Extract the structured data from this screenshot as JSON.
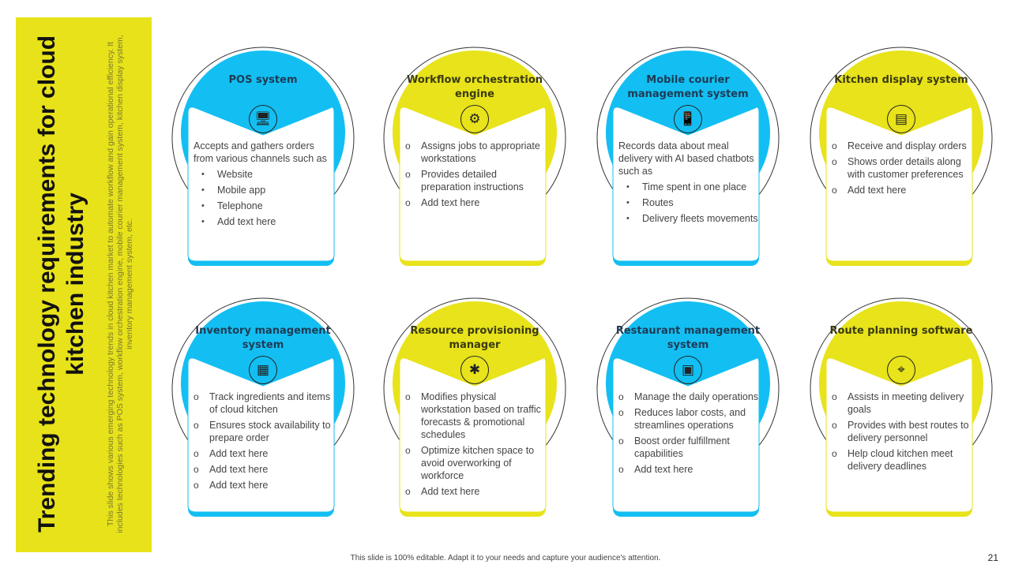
{
  "sidebar": {
    "title": "Trending technology requirements for cloud kitchen industry",
    "description": "This slide shows various emerging technology trends in cloud kitchen market to automate workflow and gain operational efficiency. It includes technologies such as POS system, workflow orchestration engine, mobile courier management system, kitchen display system, inventory management system, etc."
  },
  "colors": {
    "blue": "#13bff2",
    "yellow": "#e8e31a",
    "sidebar": "#e8e21a"
  },
  "cards": [
    {
      "title": "POS system",
      "color": "blue",
      "icon": "pos-terminal-icon",
      "intro": "Accepts and gathers orders from various channels such as",
      "bullet": "dot",
      "items": [
        "Website",
        "Mobile app",
        "Telephone",
        "Add text here"
      ]
    },
    {
      "title": "Workflow orchestration engine",
      "color": "yellow",
      "icon": "workflow-gear-icon",
      "intro": "",
      "bullet": "circ",
      "items": [
        "Assigns jobs to appropriate workstations",
        "Provides detailed preparation instructions",
        "Add text here"
      ]
    },
    {
      "title": "Mobile courier management system",
      "color": "blue",
      "icon": "mobile-delivery-icon",
      "intro": "Records data about meal delivery with AI based chatbots such as",
      "bullet": "dot",
      "items": [
        "Time spent in one place",
        "Routes",
        "Delivery fleets movements"
      ]
    },
    {
      "title": "Kitchen display system",
      "color": "yellow",
      "icon": "display-board-icon",
      "intro": "",
      "bullet": "circ",
      "items": [
        "Receive and display orders",
        "Shows order details along with customer preferences",
        "Add text here"
      ]
    },
    {
      "title": "Inventory management system",
      "color": "blue",
      "icon": "inventory-boxes-icon",
      "intro": "",
      "bullet": "circ",
      "items": [
        "Track ingredients and items of cloud kitchen",
        "Ensures stock availability to prepare order",
        "Add text here",
        "Add text here",
        "Add text here"
      ]
    },
    {
      "title": "Resource provisioning manager",
      "color": "yellow",
      "icon": "resource-network-icon",
      "intro": "",
      "bullet": "circ",
      "items": [
        "Modifies physical workstation based on traffic forecasts & promotional schedules",
        "Optimize kitchen space to avoid overworking of workforce",
        "Add text here"
      ]
    },
    {
      "title": "Restaurant management system",
      "color": "blue",
      "icon": "restaurant-calendar-icon",
      "intro": "",
      "bullet": "circ",
      "items": [
        "Manage the daily operations",
        "Reduces labor costs, and streamlines operations",
        "Boost order fulfillment capabilities",
        "Add text here"
      ]
    },
    {
      "title": "Route planning software",
      "color": "yellow",
      "icon": "route-map-icon",
      "intro": "",
      "bullet": "circ",
      "items": [
        "Assists in meeting delivery goals",
        "Provides with best routes to delivery personnel",
        "Help cloud kitchen meet delivery deadlines"
      ]
    }
  ],
  "footer": "This slide is 100% editable. Adapt it to your needs and capture your audience's attention.",
  "page_number": "21"
}
